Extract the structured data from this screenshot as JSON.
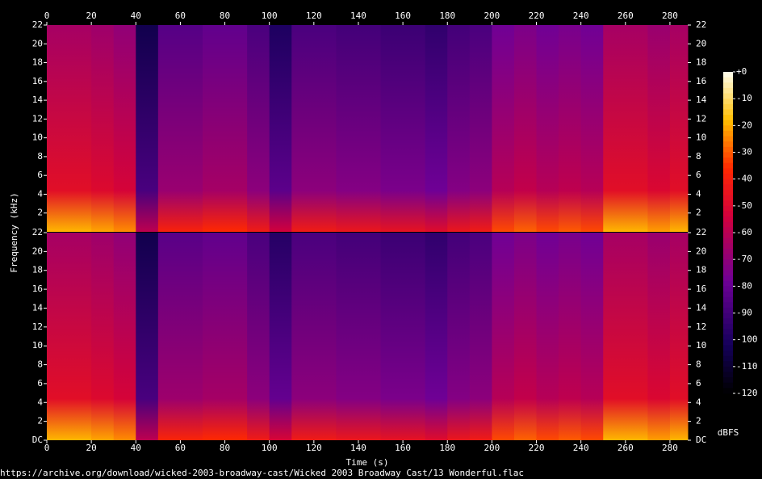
{
  "chart_data": [
    {
      "type": "spectrogram",
      "y_label": "Frequency (kHz)",
      "xlim": [
        0,
        288
      ],
      "xticks": [
        0,
        20,
        40,
        60,
        80,
        100,
        120,
        140,
        160,
        180,
        200,
        220,
        240,
        260,
        280
      ],
      "ylim": [
        0,
        22
      ],
      "yticks": [
        2,
        4,
        6,
        8,
        10,
        12,
        14,
        16,
        18,
        20,
        22
      ],
      "x": [
        0,
        10,
        20,
        30,
        40,
        50,
        60,
        70,
        80,
        90,
        100,
        110,
        120,
        130,
        140,
        150,
        160,
        170,
        180,
        190,
        200,
        210,
        220,
        230,
        240,
        250,
        260,
        270,
        280
      ],
      "values": [
        -55,
        -55,
        -57,
        -60,
        -95,
        -75,
        -75,
        -72,
        -72,
        -78,
        -90,
        -78,
        -78,
        -80,
        -80,
        -82,
        -82,
        -85,
        -80,
        -78,
        -68,
        -65,
        -68,
        -66,
        -68,
        -55,
        -55,
        -58,
        -55
      ]
    },
    {
      "type": "spectrogram",
      "x_label": "Time (s)",
      "xlim": [
        0,
        288
      ],
      "xticks": [
        0,
        20,
        40,
        60,
        80,
        100,
        120,
        140,
        160,
        180,
        200,
        220,
        240,
        260,
        280
      ],
      "ylim": [
        0,
        22
      ],
      "yticks": [
        {
          "value": 0,
          "label": "DC"
        },
        2,
        4,
        6,
        8,
        10,
        12,
        14,
        16,
        18,
        20,
        22
      ],
      "x": [
        0,
        10,
        20,
        30,
        40,
        50,
        60,
        70,
        80,
        90,
        100,
        110,
        120,
        130,
        140,
        150,
        160,
        170,
        180,
        190,
        200,
        210,
        220,
        230,
        240,
        250,
        260,
        270,
        280
      ],
      "values": [
        -55,
        -55,
        -57,
        -60,
        -95,
        -74,
        -74,
        -72,
        -72,
        -78,
        -88,
        -78,
        -78,
        -80,
        -80,
        -82,
        -82,
        -85,
        -80,
        -78,
        -68,
        -65,
        -68,
        -66,
        -68,
        -55,
        -55,
        -58,
        -55
      ]
    }
  ],
  "colorbar": {
    "label": "dBFS",
    "lim": [
      -120,
      0
    ],
    "ticks": [
      {
        "value": 0,
        "label": "+0"
      },
      -10,
      -20,
      -30,
      -40,
      -50,
      -60,
      -70,
      -80,
      -90,
      -100,
      -110,
      -120
    ]
  },
  "footer": "https://archive.org/download/wicked-2003-broadway-cast/Wicked 2003 Broadway Cast/13 Wonderful.flac"
}
